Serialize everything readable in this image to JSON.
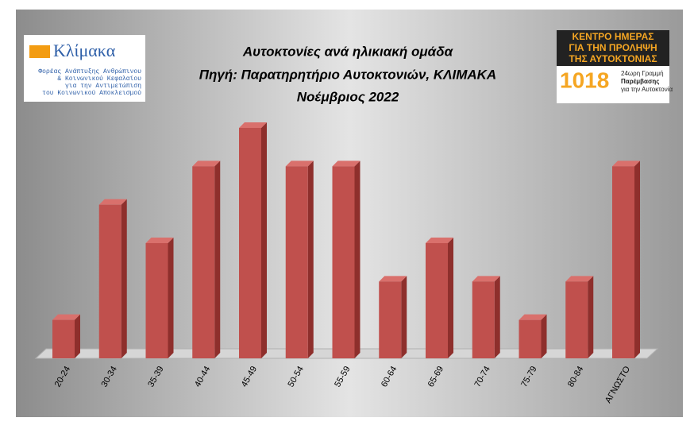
{
  "chart_data": {
    "type": "bar3d",
    "title": "Αυτοκτονίες ανά ηλικιακή ομάδα",
    "subtitle": [
      "Πηγή: Παρατηρητήριο Αυτοκτονιών, ΚΛΙΜΑΚΑ",
      "Νοέμβριος 2022"
    ],
    "categories": [
      "20-24",
      "30-34",
      "35-39",
      "40-44",
      "45-49",
      "50-54",
      "55-59",
      "60-64",
      "65-69",
      "70-74",
      "75-79",
      "80-84",
      "ΑΓΝΩΣΤΟ"
    ],
    "values": [
      1,
      4,
      3,
      5,
      6,
      5,
      5,
      2,
      3,
      2,
      1,
      2,
      5
    ],
    "color": "#c0504d"
  },
  "logos": {
    "left": {
      "name": "Κλίμακα",
      "lines": [
        "Φορέας Ανάπτυξης Ανθρώπινου",
        "& Κοινωνικού Κεφαλαίου",
        "για την Αντιμετώπιση",
        "του Κοινωνικού Αποκλεισμού"
      ]
    },
    "right": {
      "lines": [
        "ΚΕΝΤΡΟ ΗΜΕΡΑΣ",
        "ΓΙΑ ΤΗΝ ΠΡΟΛΗΨΗ",
        "ΤΗΣ ΑΥΤΟΚΤΟΝΙΑΣ"
      ],
      "number": "1018",
      "tagline": [
        "24ωρη Γραμμή",
        "Παρέμβασης",
        "για την Αυτοκτονία"
      ]
    }
  }
}
